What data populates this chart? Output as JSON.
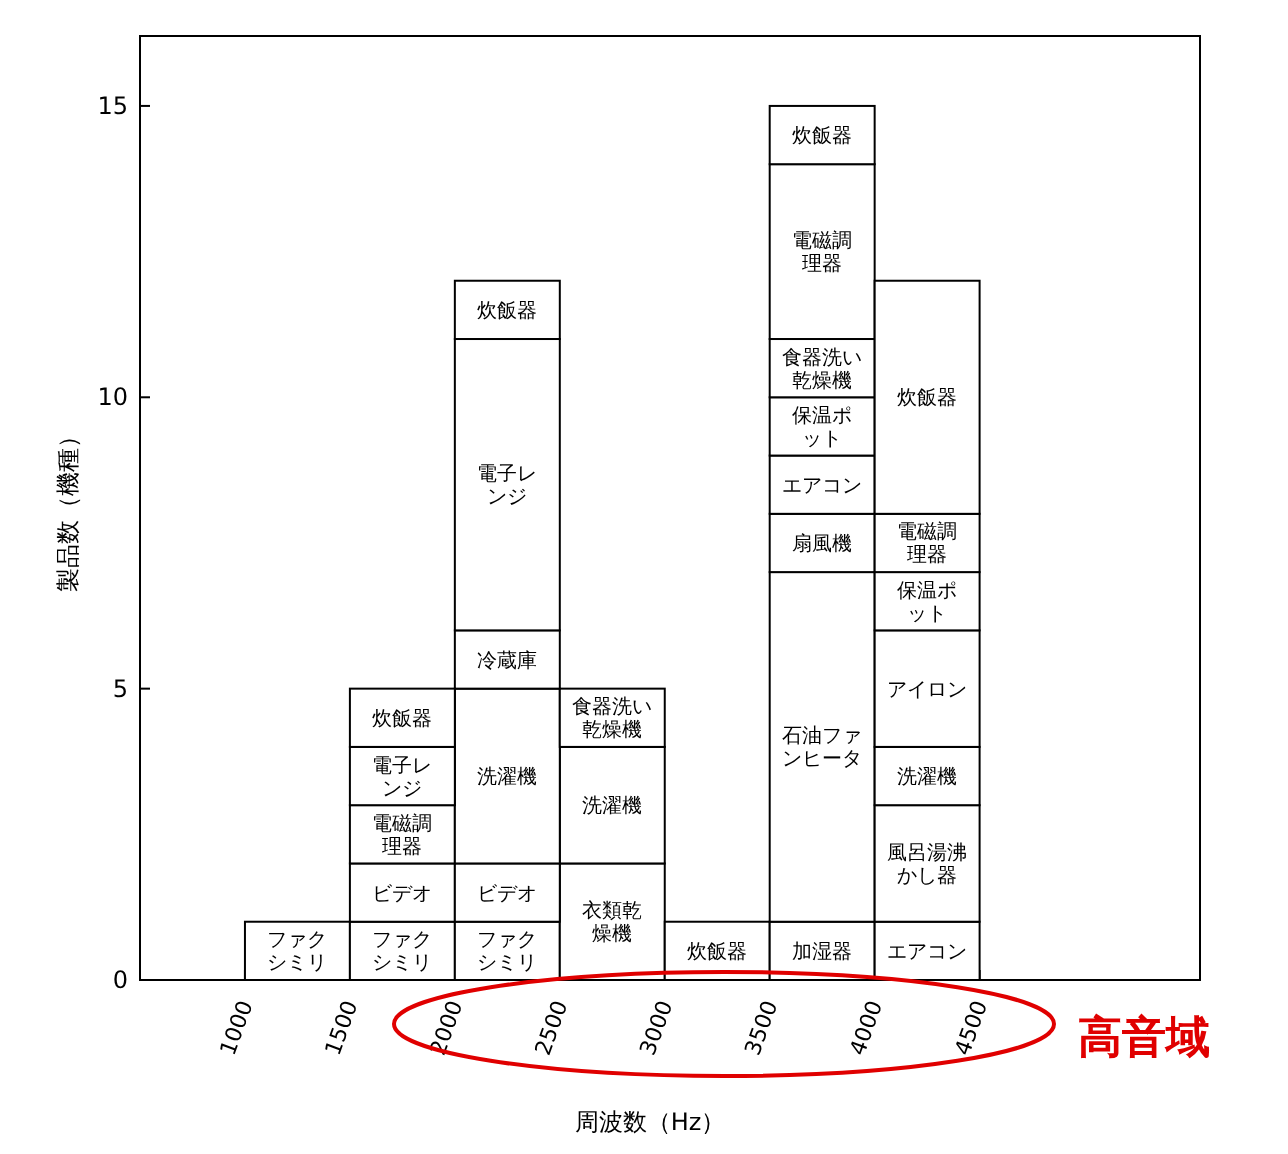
{
  "chart_data": {
    "type": "bar",
    "stacked": true,
    "xlabel": "周波数（Hz）",
    "ylabel": "製品数（機種）",
    "x": [
      1250,
      1750,
      2250,
      2750,
      3250,
      3750,
      4250
    ],
    "xlim": [
      500,
      5550
    ],
    "xticks": [
      1000,
      1500,
      2000,
      2500,
      3000,
      3500,
      4000,
      4500
    ],
    "ylim": [
      0,
      16.2
    ],
    "yticks": [
      0,
      5,
      10,
      15
    ],
    "series": [
      {
        "color": "#ffffff",
        "values": [
          1,
          1,
          1,
          2,
          1,
          1,
          1
        ],
        "value_labels": [
          "ファクシミリ",
          "ファクシミリ",
          "ファクシミリ",
          "衣類乾燥機",
          "炊飯器",
          "加湿器",
          "エアコン"
        ]
      },
      {
        "color": "#ffffff",
        "values": [
          null,
          1,
          1,
          2,
          null,
          6,
          2
        ],
        "value_labels": [
          null,
          "ビデオ",
          "ビデオ",
          "洗濯機",
          null,
          "石油ファンヒータ",
          "風呂湯沸かし器"
        ]
      },
      {
        "color": "#ffffff",
        "values": [
          null,
          1,
          3,
          1,
          null,
          1,
          1
        ],
        "value_labels": [
          null,
          "電磁調理器",
          "洗濯機",
          "食器洗い乾燥機",
          null,
          "扇風機",
          "洗濯機"
        ]
      },
      {
        "color": "#ffffff",
        "values": [
          null,
          1,
          1,
          null,
          null,
          1,
          2
        ],
        "value_labels": [
          null,
          "電子レンジ",
          "冷蔵庫",
          null,
          null,
          "エアコン",
          "アイロン"
        ]
      },
      {
        "color": "#ffffff",
        "values": [
          null,
          1,
          5,
          null,
          null,
          1,
          1
        ],
        "value_labels": [
          null,
          "炊飯器",
          "電子レンジ",
          null,
          null,
          "保温ポット",
          "保温ポット"
        ]
      },
      {
        "color": "#ffffff",
        "values": [
          null,
          null,
          1,
          null,
          null,
          1,
          1
        ],
        "value_labels": [
          null,
          null,
          "炊飯器",
          null,
          null,
          "食器洗い乾燥機",
          "電磁調理器"
        ]
      },
      {
        "color": "#ffffff",
        "values": [
          null,
          null,
          null,
          null,
          null,
          3,
          4
        ],
        "value_labels": [
          null,
          null,
          null,
          null,
          null,
          "電磁調理器",
          "炊飯器"
        ]
      },
      {
        "color": "#ffffff",
        "values": [
          null,
          null,
          null,
          null,
          null,
          1,
          null
        ],
        "value_labels": [
          null,
          null,
          null,
          null,
          null,
          "炊飯器",
          null
        ]
      }
    ],
    "annotations": [
      "高音域"
    ]
  }
}
